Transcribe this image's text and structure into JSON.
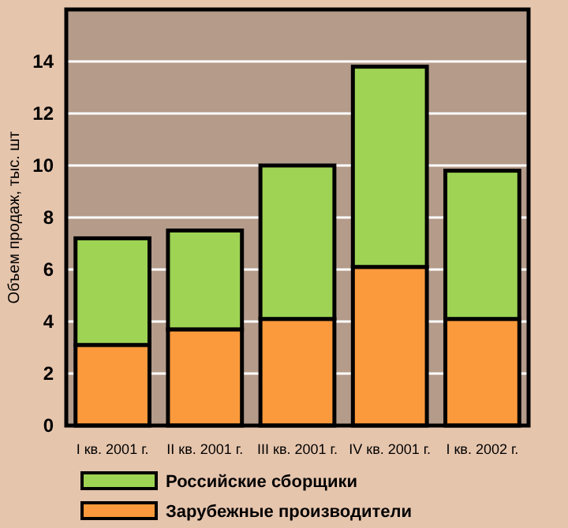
{
  "chart_data": {
    "type": "bar",
    "stacked": true,
    "ylabel": "Объем продаж, тыс. шт",
    "categories": [
      "I кв. 2001 г.",
      "II кв. 2001 г.",
      "III кв. 2001 г.",
      "IV кв. 2001 г.",
      "I кв. 2002 г."
    ],
    "series": [
      {
        "name": "Зарубежные производители",
        "color": "#fb9a3c",
        "values": [
          3.1,
          3.7,
          4.1,
          6.1,
          4.1
        ]
      },
      {
        "name": "Российские сборщики",
        "color": "#9ed354",
        "values": [
          4.1,
          3.8,
          5.9,
          7.7,
          5.7
        ]
      }
    ],
    "ylim": [
      0,
      16
    ],
    "yticks": [
      0,
      2,
      4,
      6,
      8,
      10,
      12,
      14
    ],
    "grid": "y",
    "legend": "bottom"
  }
}
